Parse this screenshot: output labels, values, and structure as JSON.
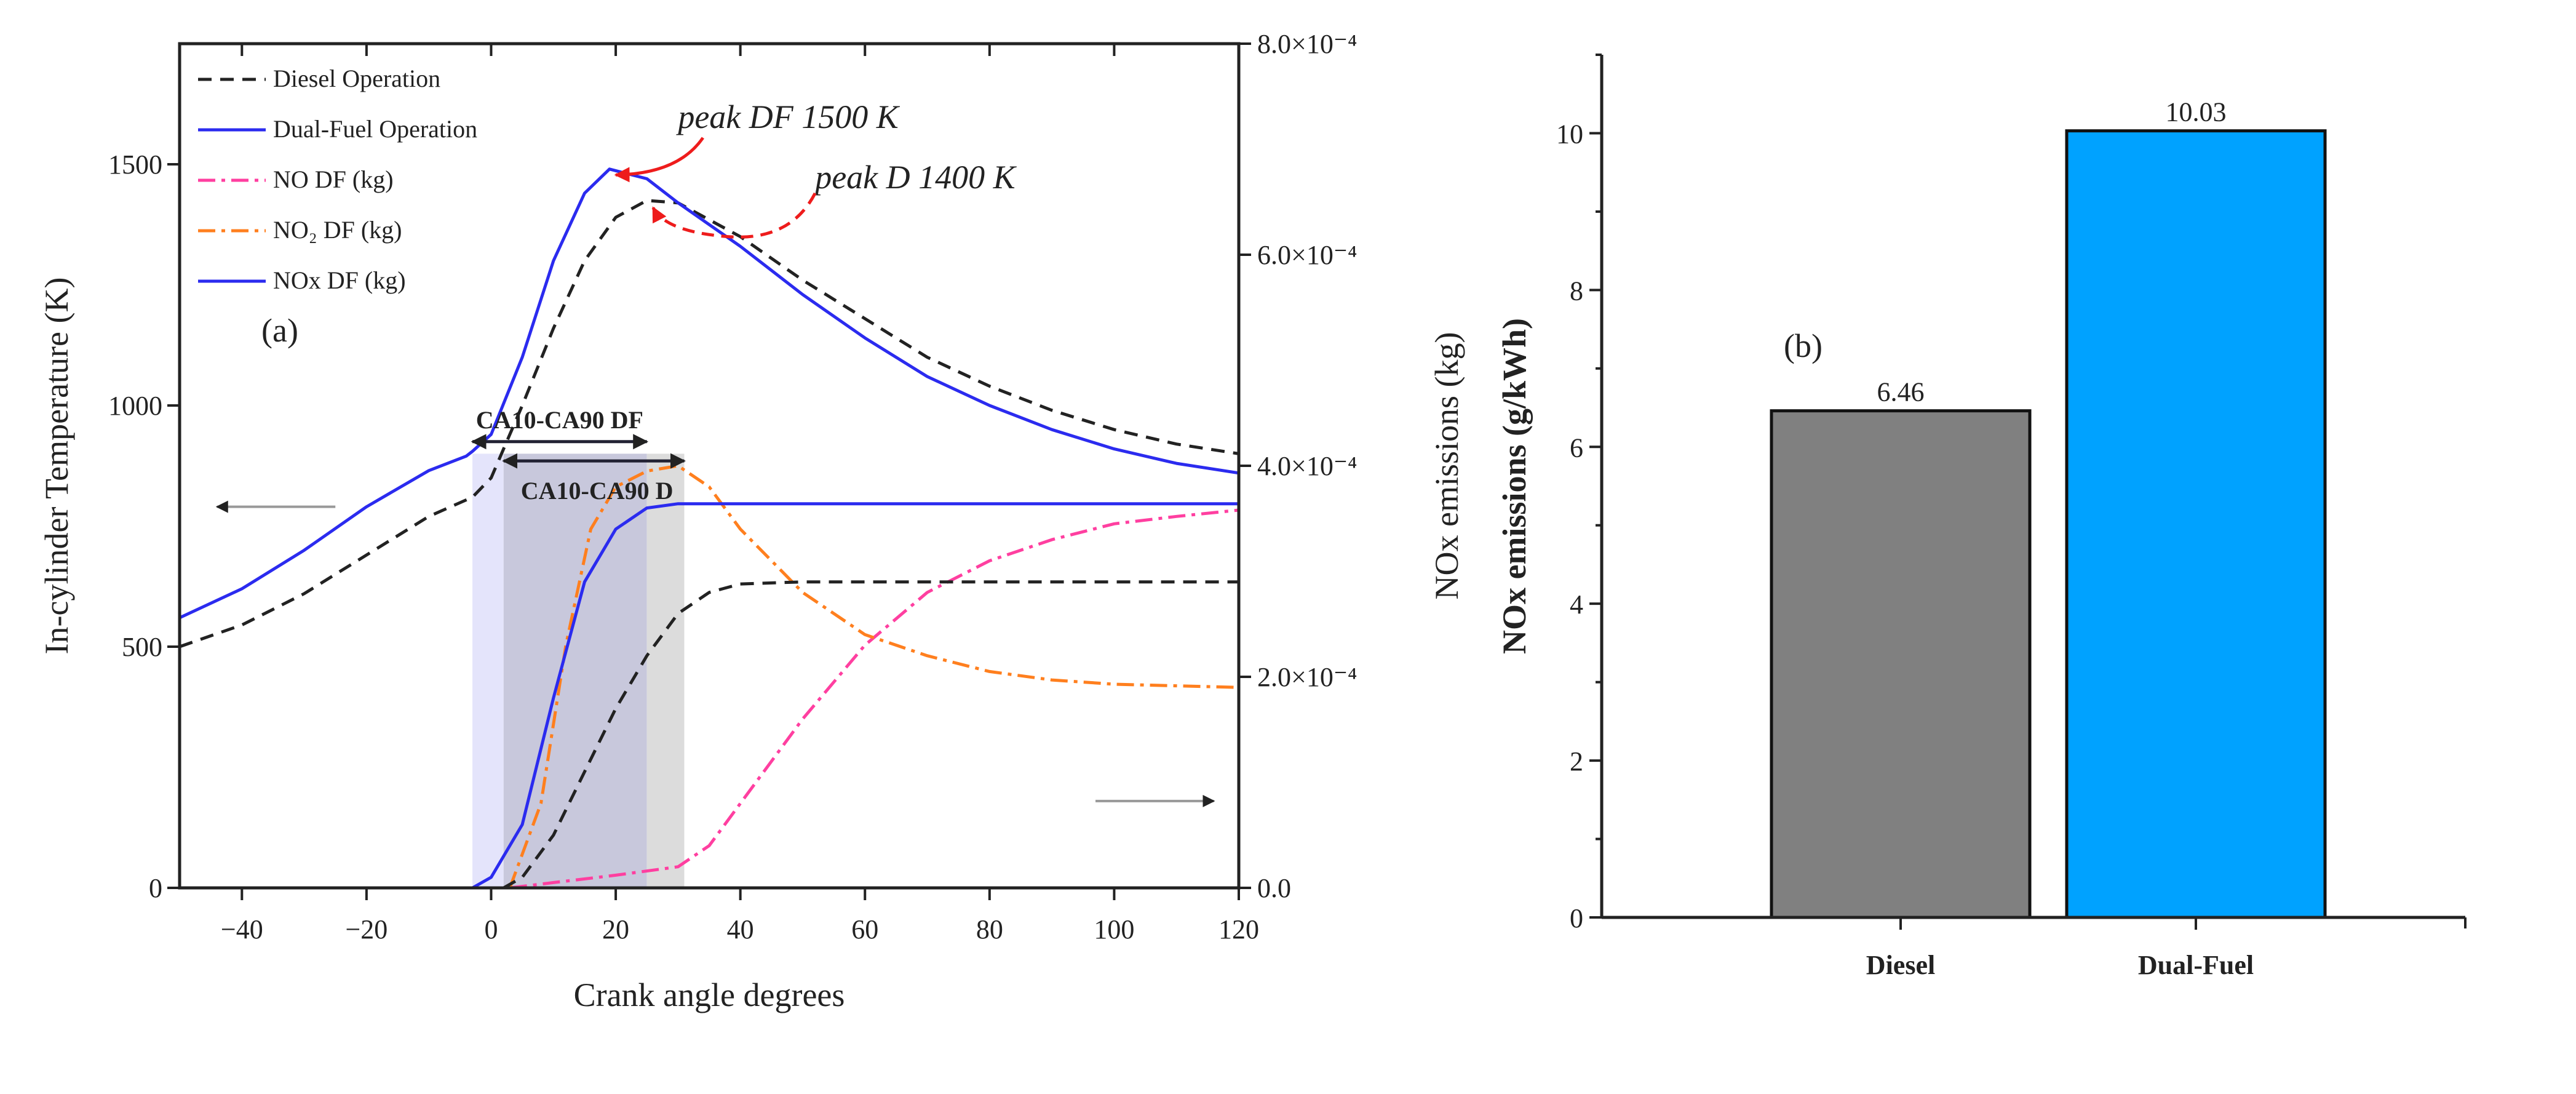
{
  "chart_data": [
    {
      "type": "line",
      "panel_label": "(a)",
      "xlabel": "Crank angle degrees",
      "ylabel": "In-cylinder Temperature (K)",
      "y2label": "NOx emissions (kg)",
      "xlim": [
        -50,
        120
      ],
      "ylim": [
        0,
        1750
      ],
      "y2lim": [
        0,
        0.0008
      ],
      "xticks": [
        "-40",
        "-20",
        "0",
        "20",
        "40",
        "60",
        "80",
        "100",
        "120"
      ],
      "xtick_values": [
        -40,
        -20,
        0,
        20,
        40,
        60,
        80,
        100,
        120
      ],
      "yticks": [
        "0",
        "500",
        "1000",
        "1500"
      ],
      "ytick_values": [
        0,
        500,
        1000,
        1500
      ],
      "y2ticks": [
        "0.0",
        "2.0×10⁻⁴",
        "4.0×10⁻⁴",
        "6.0×10⁻⁴",
        "8.0×10⁻⁴"
      ],
      "y2tick_values": [
        0,
        0.0002,
        0.0004,
        0.0006,
        0.0008
      ],
      "legend_position": "top-left",
      "series": [
        {
          "name": "Diesel Operation",
          "axis": "left",
          "color": "#222222",
          "style": "dash",
          "x": [
            -50,
            -40,
            -30,
            -20,
            -10,
            -3,
            0,
            5,
            10,
            15,
            20,
            25,
            30,
            40,
            50,
            60,
            70,
            80,
            90,
            100,
            110,
            120
          ],
          "y": [
            500,
            545,
            610,
            690,
            770,
            810,
            850,
            1000,
            1160,
            1300,
            1390,
            1425,
            1420,
            1350,
            1260,
            1180,
            1100,
            1040,
            990,
            950,
            920,
            900
          ]
        },
        {
          "name": "Dual-Fuel Operation",
          "axis": "left",
          "color": "#2b2bef",
          "style": "solid",
          "x": [
            -50,
            -40,
            -30,
            -20,
            -10,
            -4,
            -3,
            0,
            5,
            10,
            15,
            19,
            25,
            30,
            40,
            50,
            60,
            70,
            80,
            90,
            100,
            110,
            120
          ],
          "y": [
            560,
            620,
            700,
            790,
            865,
            895,
            905,
            940,
            1100,
            1300,
            1440,
            1490,
            1470,
            1420,
            1330,
            1230,
            1140,
            1060,
            1000,
            950,
            910,
            880,
            860
          ]
        },
        {
          "name": "NO DF (kg)",
          "axis": "right",
          "color": "#ff3fa0",
          "style": "dashdot",
          "x": [
            3,
            10,
            20,
            30,
            35,
            40,
            50,
            60,
            70,
            80,
            90,
            100,
            110,
            120
          ],
          "y": [
            0,
            5e-06,
            1.2e-05,
            2e-05,
            4e-05,
            8e-05,
            0.00016,
            0.00023,
            0.00028,
            0.00031,
            0.00033,
            0.000345,
            0.000352,
            0.000358
          ]
        },
        {
          "name": "NO₂ DF (kg)",
          "axis": "right",
          "color": "#ff7f1e",
          "style": "dashdot",
          "x": [
            3,
            8,
            12,
            16,
            20,
            25,
            30,
            35,
            40,
            50,
            60,
            70,
            80,
            90,
            100,
            120
          ],
          "y": [
            0,
            8e-05,
            0.00023,
            0.00034,
            0.00038,
            0.000395,
            0.0004,
            0.00038,
            0.00034,
            0.00028,
            0.00024,
            0.00022,
            0.000205,
            0.000197,
            0.000193,
            0.00019
          ]
        },
        {
          "name": "NOx DF (kg)",
          "axis": "right",
          "color": "#2b2bef",
          "style": "solid",
          "x": [
            -3,
            0,
            5,
            10,
            15,
            20,
            25,
            30,
            40,
            60,
            80,
            100,
            120
          ],
          "y": [
            0,
            1e-05,
            6e-05,
            0.00018,
            0.00029,
            0.00034,
            0.00036,
            0.000364,
            0.000364,
            0.000364,
            0.000364,
            0.000364,
            0.000364
          ]
        },
        {
          "name": "Diesel NOx",
          "axis": "right",
          "color": "#222222",
          "style": "dash",
          "in_legend": false,
          "x": [
            2,
            5,
            10,
            15,
            20,
            25,
            30,
            35,
            40,
            50,
            120
          ],
          "y": [
            0,
            1e-05,
            5e-05,
            0.00011,
            0.00017,
            0.00022,
            0.00026,
            0.00028,
            0.000288,
            0.00029,
            0.00029
          ]
        }
      ],
      "shaded_regions": [
        {
          "label": "CA10-CA90 DF",
          "x": [
            -3,
            25
          ],
          "color": "#e4e4fb"
        },
        {
          "label": "CA10-CA90 D",
          "x": [
            2,
            31
          ],
          "color": "#dcdcdc"
        }
      ],
      "annotations": [
        {
          "text": "peak DF 1500 K",
          "x": 30,
          "y": 1575
        },
        {
          "text": "peak D 1400 K",
          "x": 52,
          "y": 1450
        }
      ]
    },
    {
      "type": "bar",
      "panel_label": "(b)",
      "categories": [
        "Diesel",
        "Dual-Fuel"
      ],
      "values": [
        6.46,
        10.03
      ],
      "value_labels": [
        "6.46",
        "10.03"
      ],
      "colors": [
        "#808080",
        "#00a2ff"
      ],
      "ylabel": "NOx emissions (g/kWh)",
      "xlabel": "",
      "ylim": [
        0,
        11
      ],
      "yticks": [
        "0",
        "2",
        "4",
        "6",
        "8",
        "10"
      ],
      "ytick_values": [
        0,
        2,
        4,
        6,
        8,
        10
      ]
    }
  ]
}
